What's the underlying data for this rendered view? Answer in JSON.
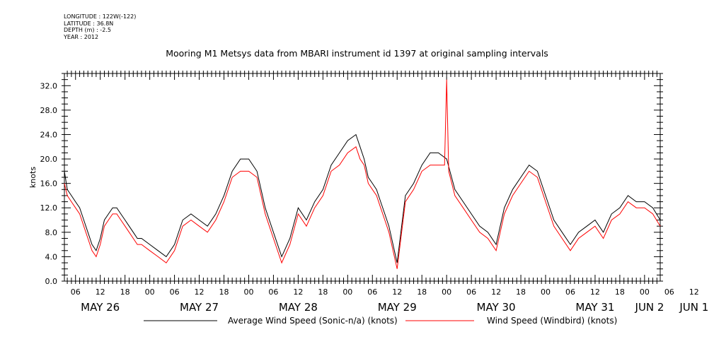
{
  "header": {
    "lines": [
      "LONGITUDE : 122W(-122)",
      "LATITUDE : 36.8N",
      "DEPTH (m) : -2.5",
      "YEAR : 2012"
    ],
    "title": "Mooring M1 Metsys data from MBARI instrument id 1397 at original sampling intervals"
  },
  "chart_data": {
    "type": "line",
    "title": "Mooring M1 Metsys data from MBARI instrument id 1397 at original sampling intervals",
    "xlabel": "",
    "ylabel": "knots",
    "ylim": [
      0,
      34
    ],
    "yticks": [
      0,
      4,
      8,
      12,
      16,
      20,
      24,
      28,
      32
    ],
    "xlim_hours_from_may25_00": [
      27.3,
      171.8
    ],
    "hour_ticks": [
      "06",
      "12",
      "18",
      "00",
      "06",
      "12",
      "18",
      "00",
      "06",
      "12",
      "18",
      "00",
      "06",
      "12",
      "18",
      "00",
      "06",
      "12",
      "18",
      "00",
      "06",
      "12",
      "18",
      "00",
      "06",
      "12",
      "18",
      "00"
    ],
    "day_labels": [
      "MAY 26",
      "MAY 27",
      "MAY 28",
      "MAY 29",
      "MAY 30",
      "MAY 31",
      "JUN  1",
      "JUN  2"
    ],
    "x_unit": "hours (UTC), May 25 2012 00:00 reference",
    "series": [
      {
        "name": "Average Wind Speed (Sonic-n/a) (knots)",
        "color": "#000000",
        "x": [
          27.3,
          28,
          29,
          30,
          31,
          32,
          33,
          34,
          35,
          36,
          37,
          38,
          39,
          40,
          41,
          42,
          43,
          44,
          45,
          46,
          48,
          50,
          52,
          54,
          56,
          58,
          60,
          62,
          64,
          66,
          68,
          70,
          72,
          74,
          76,
          78,
          80,
          82,
          84,
          86,
          88,
          90,
          92,
          94,
          96,
          98,
          99,
          100,
          101,
          102,
          103,
          104,
          105,
          106,
          108,
          110,
          112,
          114,
          116,
          118,
          120,
          122,
          124,
          126,
          128,
          130,
          132,
          134,
          136,
          138,
          140,
          142,
          144,
          146,
          148,
          150,
          152,
          154,
          156,
          158,
          160,
          162,
          164,
          166,
          168,
          170,
          171.8
        ],
        "values": [
          18,
          15,
          14,
          13,
          12,
          10,
          8,
          6,
          5,
          7,
          10,
          11,
          12,
          12,
          11,
          10,
          9,
          8,
          7,
          7,
          6,
          5,
          4,
          6,
          10,
          11,
          10,
          9,
          11,
          14,
          18,
          20,
          20,
          18,
          12,
          8,
          4,
          7,
          12,
          10,
          13,
          15,
          19,
          21,
          23,
          24,
          22,
          20,
          17,
          16,
          15,
          13,
          11,
          9,
          3,
          14,
          16,
          19,
          21,
          21,
          20,
          15,
          13,
          11,
          9,
          8,
          6,
          12,
          15,
          17,
          19,
          18,
          14,
          10,
          8,
          6,
          8,
          9,
          10,
          8,
          11,
          12,
          14,
          13,
          13,
          12,
          10
        ]
      },
      {
        "name": "Wind Speed (Windbird) (knots)",
        "color": "#ff0000",
        "x": [
          27.3,
          28,
          29,
          30,
          31,
          32,
          33,
          34,
          35,
          36,
          37,
          38,
          39,
          40,
          41,
          42,
          43,
          44,
          45,
          46,
          48,
          50,
          52,
          54,
          56,
          58,
          60,
          62,
          64,
          66,
          68,
          70,
          72,
          74,
          76,
          78,
          80,
          82,
          84,
          86,
          88,
          90,
          92,
          94,
          96,
          98,
          99,
          100,
          101,
          102,
          103,
          104,
          105,
          106,
          108,
          110,
          112,
          114,
          116,
          118,
          119.5,
          120,
          120.5,
          122,
          124,
          126,
          128,
          130,
          132,
          134,
          136,
          138,
          140,
          142,
          144,
          146,
          148,
          150,
          152,
          154,
          156,
          158,
          160,
          162,
          164,
          166,
          168,
          170,
          171.8
        ],
        "values": [
          16,
          14,
          13,
          12,
          11,
          9,
          7,
          5,
          4,
          6,
          9,
          10,
          11,
          11,
          10,
          9,
          8,
          7,
          6,
          6,
          5,
          4,
          3,
          5,
          9,
          10,
          9,
          8,
          10,
          13,
          17,
          18,
          18,
          17,
          11,
          7,
          3,
          6,
          11,
          9,
          12,
          14,
          18,
          19,
          21,
          22,
          20,
          19,
          16,
          15,
          14,
          12,
          10,
          8,
          2,
          13,
          15,
          18,
          19,
          19,
          19,
          33,
          18,
          14,
          12,
          10,
          8,
          7,
          5,
          11,
          14,
          16,
          18,
          17,
          13,
          9,
          7,
          5,
          7,
          8,
          9,
          7,
          10,
          11,
          13,
          12,
          12,
          11,
          9
        ]
      }
    ],
    "legend": "bottom"
  }
}
